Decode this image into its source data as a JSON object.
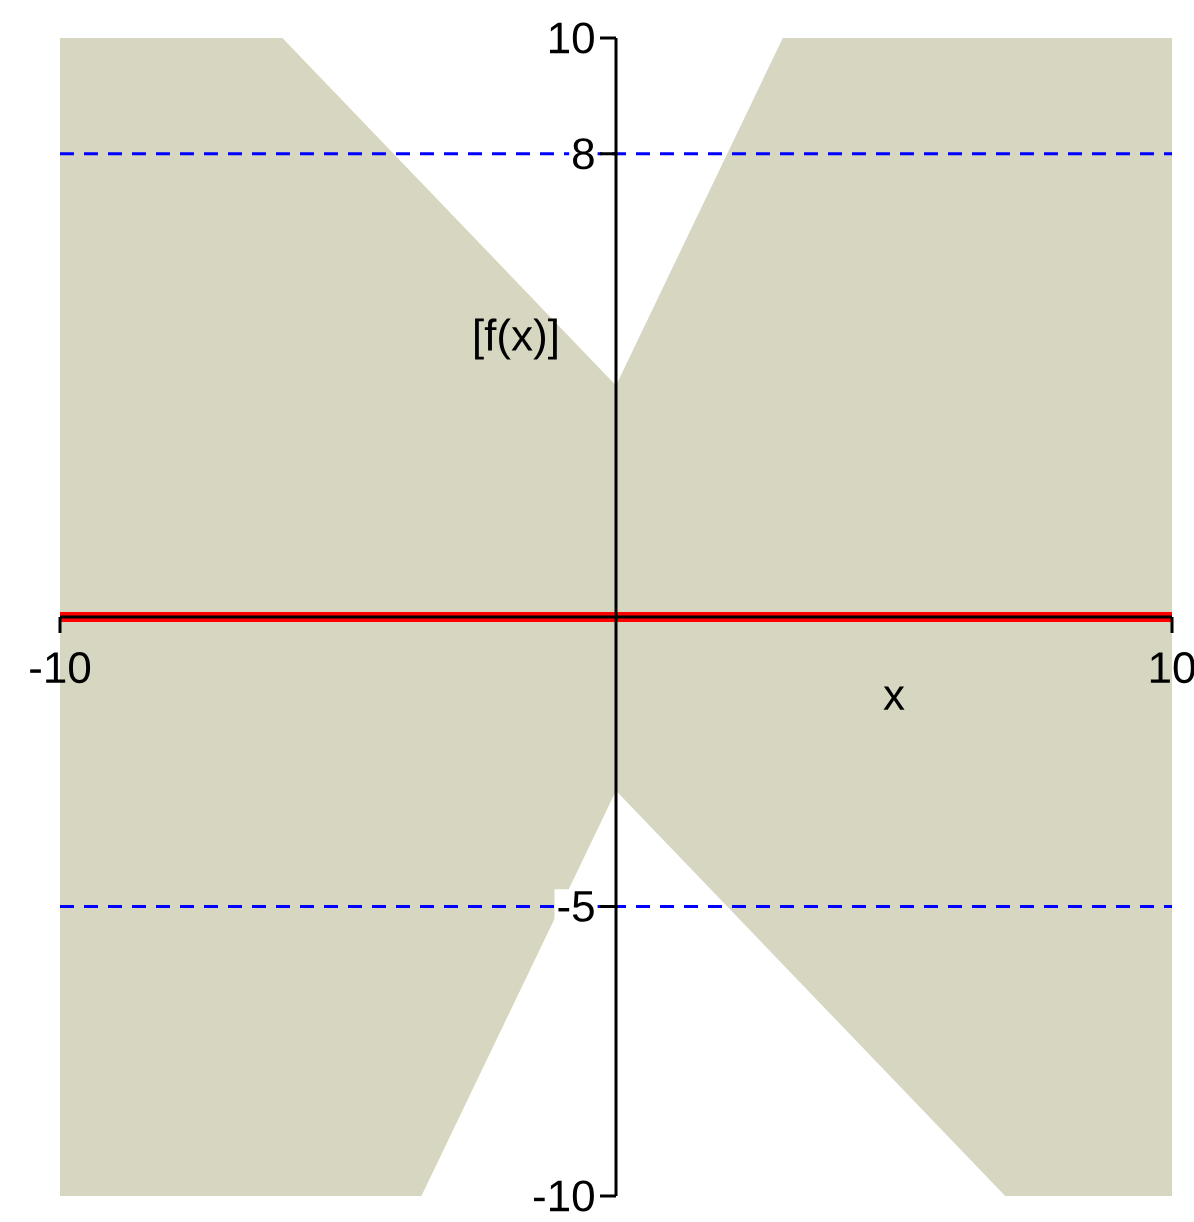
{
  "chart_data": {
    "type": "line",
    "xlabel": "x",
    "ylabel": "[f(x)]",
    "xlim": [
      -10,
      10
    ],
    "ylim": [
      -10,
      10
    ],
    "xticks": [
      -10,
      10
    ],
    "yticks": [
      -10,
      -5,
      8,
      10
    ],
    "series": [
      {
        "type": "area",
        "color": "#d6d6c1",
        "x": [
          -10,
          -6,
          -3.5,
          0,
          3,
          7,
          10
        ],
        "values": [
          10,
          10,
          7.5,
          4,
          10,
          10,
          10
        ]
      },
      {
        "type": "area",
        "color": "#d6d6c1",
        "x": [
          -10,
          -6,
          -3.5,
          0,
          3,
          7,
          10
        ],
        "values": [
          -10,
          -10,
          -10,
          -3,
          -6,
          -10,
          -10
        ]
      },
      {
        "color": "#ff0000",
        "x": [
          -10,
          -6,
          -3.5,
          0,
          3,
          7,
          10
        ],
        "values": [
          0,
          0,
          0,
          0,
          0,
          0,
          0
        ]
      }
    ],
    "ref_lines": [
      {
        "axis": "y",
        "value": 8,
        "color": "#0000ff",
        "line_style": "dashed"
      },
      {
        "axis": "y",
        "value": -5,
        "color": "#0000ff",
        "line_style": "dashed"
      }
    ]
  }
}
